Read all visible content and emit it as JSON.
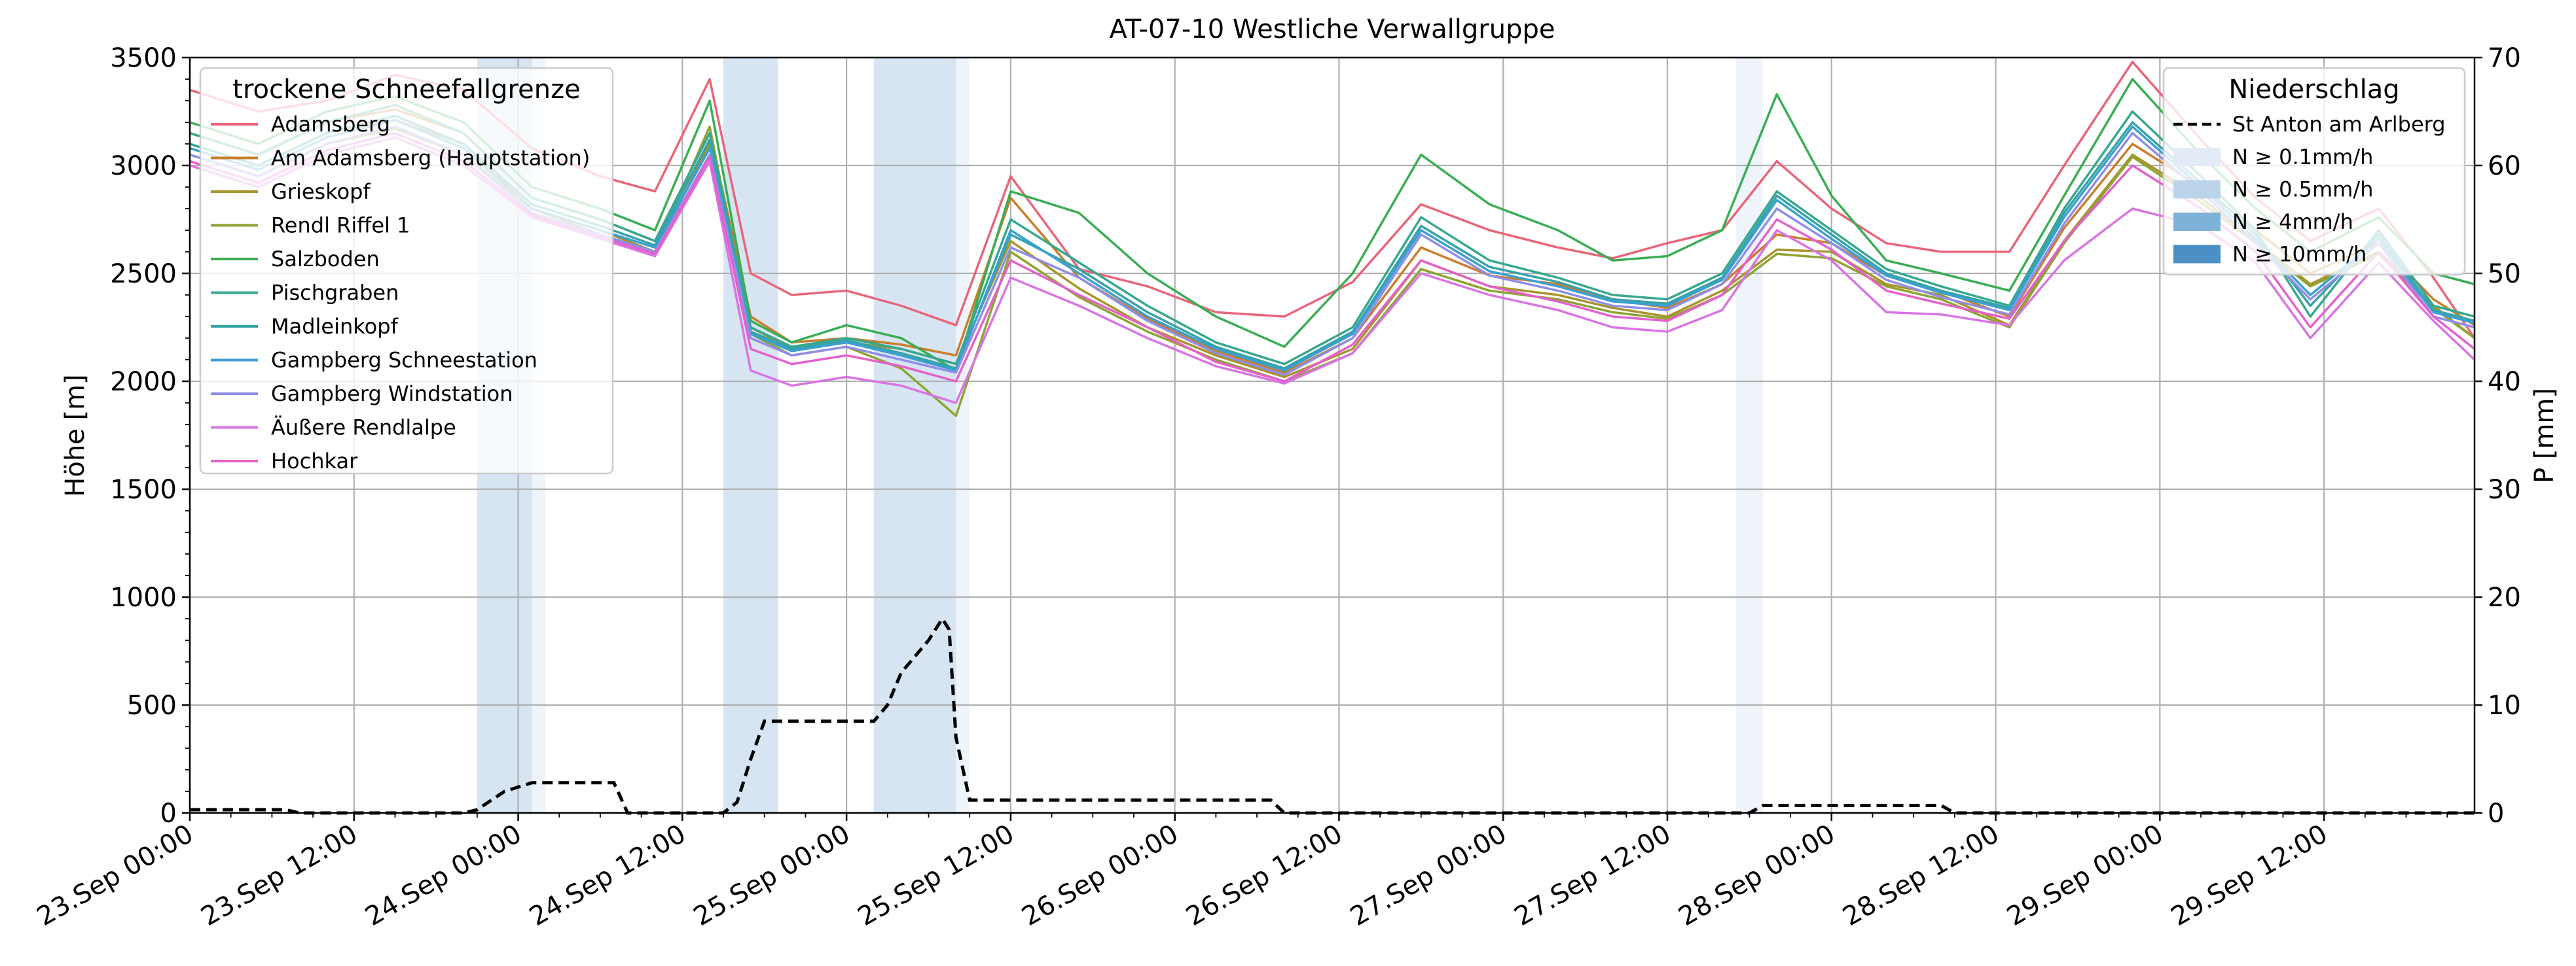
{
  "chart_data": {
    "type": "line",
    "title": "AT-07-10 Westliche Verwallgruppe",
    "ylabel": "Höhe [m]",
    "y2label": "P [mm]",
    "ylim": [
      0,
      3500
    ],
    "y2lim": [
      0,
      70
    ],
    "xlim_hours": [
      0,
      167
    ],
    "y_ticks": [
      "0",
      "500",
      "1000",
      "1500",
      "2000",
      "2500",
      "3000",
      "3500"
    ],
    "y2_ticks": [
      "0",
      "10",
      "20",
      "30",
      "40",
      "50",
      "60",
      "70"
    ],
    "x_ticks": [
      "23.Sep 00:00",
      "23.Sep 12:00",
      "24.Sep 00:00",
      "24.Sep 12:00",
      "25.Sep 00:00",
      "25.Sep 12:00",
      "26.Sep 00:00",
      "26.Sep 12:00",
      "27.Sep 00:00",
      "27.Sep 12:00",
      "28.Sep 00:00",
      "28.Sep 12:00",
      "29.Sep 00:00",
      "29.Sep 12:00"
    ],
    "grid": true,
    "legend_left": {
      "title": "trockene Schneefallgrenze",
      "position": "top-left"
    },
    "legend_right": {
      "title": "Niederschlag",
      "position": "top-right",
      "line_label": "St Anton am Arlberg",
      "band_labels": [
        "N ≥ 0.1mm/h",
        "N ≥ 0.5mm/h",
        "N ≥ 4mm/h",
        "N ≥ 10mm/h"
      ],
      "band_colors": [
        "#e3ecf6",
        "#bcd4ea",
        "#7fb2d8",
        "#4b8fc4"
      ]
    },
    "x_hours": [
      0,
      5,
      10,
      15,
      20,
      25,
      30,
      34,
      38,
      41,
      44,
      48,
      52,
      56,
      60,
      65,
      70,
      75,
      80,
      85,
      90,
      95,
      100,
      104,
      108,
      112,
      116,
      120,
      124,
      128,
      133,
      137,
      142,
      147,
      151,
      155,
      160,
      164,
      167
    ],
    "series": [
      {
        "name": "Adamsberg",
        "color": "#e8657a",
        "values": [
          3350,
          3250,
          3300,
          3420,
          3350,
          3080,
          2950,
          2880,
          3400,
          2500,
          2400,
          2420,
          2350,
          2260,
          2950,
          2520,
          2440,
          2320,
          2300,
          2460,
          2820,
          2700,
          2620,
          2570,
          2640,
          2700,
          3020,
          2800,
          2640,
          2600,
          2600,
          3000,
          3480,
          3120,
          2850,
          2650,
          2800,
          2480,
          2200
        ]
      },
      {
        "name": "Am Adamsberg (Hauptstation)",
        "color": "#ca7e2c",
        "values": [
          3150,
          3050,
          3200,
          3260,
          3150,
          2850,
          2750,
          2650,
          3150,
          2300,
          2180,
          2200,
          2170,
          2120,
          2850,
          2480,
          2290,
          2140,
          2040,
          2200,
          2620,
          2490,
          2450,
          2380,
          2340,
          2450,
          2680,
          2640,
          2490,
          2420,
          2300,
          2710,
          3100,
          2900,
          2700,
          2500,
          2640,
          2380,
          2260
        ]
      },
      {
        "name": "Grieskopf",
        "color": "#a8932d",
        "values": [
          3100,
          3000,
          3150,
          3210,
          3100,
          2800,
          2700,
          2600,
          3100,
          2250,
          2150,
          2180,
          2150,
          2080,
          2650,
          2430,
          2250,
          2120,
          2020,
          2150,
          2560,
          2440,
          2400,
          2340,
          2300,
          2420,
          2610,
          2600,
          2450,
          2400,
          2260,
          2650,
          3050,
          2850,
          2650,
          2450,
          2600,
          2350,
          2200
        ]
      },
      {
        "name": "Rendl Riffel 1",
        "color": "#8fa332",
        "values": [
          3050,
          2950,
          3100,
          3170,
          3050,
          2800,
          2680,
          2600,
          3180,
          2220,
          2120,
          2160,
          2060,
          1840,
          2600,
          2390,
          2230,
          2100,
          2000,
          2130,
          2520,
          2420,
          2380,
          2320,
          2290,
          2400,
          2590,
          2570,
          2440,
          2380,
          2250,
          2640,
          3040,
          2830,
          2640,
          2440,
          2590,
          2340,
          2200
        ]
      },
      {
        "name": "Salzboden",
        "color": "#3aad53",
        "values": [
          3200,
          3100,
          3250,
          3320,
          3200,
          2900,
          2800,
          2700,
          3300,
          2280,
          2180,
          2260,
          2200,
          2050,
          2880,
          2780,
          2500,
          2300,
          2160,
          2500,
          3050,
          2820,
          2700,
          2560,
          2580,
          2700,
          3330,
          2860,
          2560,
          2500,
          2420,
          2860,
          3400,
          3050,
          2800,
          2600,
          2760,
          2500,
          2450
        ]
      },
      {
        "name": "Pischgraben",
        "color": "#36a88f",
        "values": [
          3150,
          3050,
          3200,
          3280,
          3150,
          2850,
          2750,
          2650,
          3150,
          2250,
          2160,
          2200,
          2150,
          2080,
          2750,
          2550,
          2350,
          2180,
          2080,
          2250,
          2760,
          2560,
          2480,
          2400,
          2380,
          2500,
          2880,
          2700,
          2520,
          2440,
          2350,
          2800,
          3250,
          2950,
          2700,
          2300,
          2700,
          2350,
          2300
        ]
      },
      {
        "name": "Madleinkopf",
        "color": "#37a3a6",
        "values": [
          3100,
          3000,
          3150,
          3230,
          3100,
          2820,
          2720,
          2630,
          3120,
          2230,
          2150,
          2190,
          2130,
          2060,
          2680,
          2520,
          2320,
          2160,
          2060,
          2230,
          2720,
          2530,
          2460,
          2380,
          2360,
          2480,
          2860,
          2680,
          2500,
          2420,
          2340,
          2780,
          3200,
          2920,
          2680,
          2350,
          2680,
          2330,
          2280
        ]
      },
      {
        "name": "Gampberg Schneestation",
        "color": "#3aa0d3",
        "values": [
          3080,
          2980,
          3130,
          3210,
          3080,
          2800,
          2700,
          2620,
          3080,
          2220,
          2140,
          2180,
          2120,
          2050,
          2700,
          2500,
          2300,
          2150,
          2050,
          2220,
          2700,
          2510,
          2440,
          2370,
          2350,
          2470,
          2840,
          2660,
          2490,
          2410,
          2330,
          2760,
          3180,
          2900,
          2660,
          2400,
          2660,
          2320,
          2270
        ]
      },
      {
        "name": "Gampberg Windstation",
        "color": "#8f8ee8",
        "values": [
          3050,
          2950,
          3100,
          3180,
          3050,
          2780,
          2680,
          2600,
          3050,
          2200,
          2120,
          2160,
          2100,
          2040,
          2620,
          2480,
          2280,
          2130,
          2030,
          2200,
          2680,
          2490,
          2420,
          2350,
          2330,
          2450,
          2800,
          2640,
          2470,
          2390,
          2310,
          2730,
          3150,
          2880,
          2640,
          2380,
          2640,
          2300,
          2250
        ]
      },
      {
        "name": "Äußere Rendlalpe",
        "color": "#d974e4",
        "values": [
          3000,
          2900,
          3050,
          3130,
          3000,
          2760,
          2660,
          2580,
          3020,
          2050,
          1980,
          2020,
          1980,
          1900,
          2480,
          2350,
          2200,
          2070,
          1990,
          2130,
          2500,
          2400,
          2330,
          2250,
          2230,
          2330,
          2700,
          2560,
          2320,
          2310,
          2260,
          2560,
          2800,
          2720,
          2550,
          2200,
          2550,
          2280,
          2100
        ]
      },
      {
        "name": "Hochkar",
        "color": "#e560cb",
        "values": [
          3020,
          2920,
          3070,
          3150,
          3020,
          2770,
          2670,
          2590,
          3040,
          2150,
          2080,
          2120,
          2070,
          2000,
          2560,
          2400,
          2250,
          2090,
          2000,
          2170,
          2560,
          2440,
          2370,
          2300,
          2280,
          2400,
          2750,
          2610,
          2420,
          2360,
          2290,
          2650,
          3000,
          2800,
          2600,
          2250,
          2600,
          2300,
          2150
        ]
      }
    ],
    "precip_line": {
      "name": "St Anton am Arlberg",
      "x_hours": [
        0,
        7,
        8,
        20,
        21,
        23,
        25,
        27,
        31,
        32,
        39,
        40,
        41,
        42,
        46,
        50,
        51,
        52,
        54,
        55,
        55.5,
        56,
        57,
        79,
        80,
        114,
        115,
        128,
        129,
        167
      ],
      "values": [
        0.3,
        0.3,
        0,
        0,
        0.3,
        2,
        2.8,
        2.8,
        2.8,
        0,
        0,
        1,
        5,
        8.5,
        8.5,
        8.5,
        10,
        13,
        16,
        18,
        17,
        7,
        1.2,
        1.2,
        0,
        0,
        0.7,
        0.7,
        0,
        0
      ]
    },
    "precip_bands": [
      {
        "start": 21,
        "end": 25,
        "level": 1
      },
      {
        "start": 25,
        "end": 26,
        "level": 0
      },
      {
        "start": 39,
        "end": 43,
        "level": 1
      },
      {
        "start": 50,
        "end": 56,
        "level": 1
      },
      {
        "start": 56,
        "end": 57,
        "level": 0
      },
      {
        "start": 113,
        "end": 115,
        "level": 0
      }
    ]
  }
}
